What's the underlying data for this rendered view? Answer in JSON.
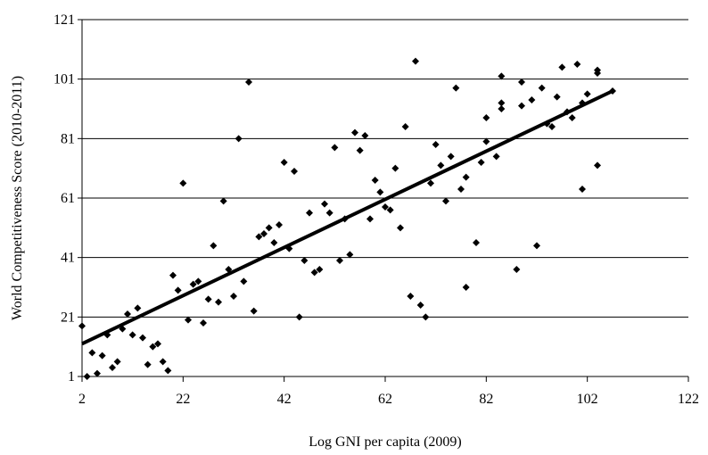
{
  "chart_data": {
    "type": "scatter",
    "xlabel": "Log GNI per capita (2009)",
    "ylabel": "World Competitiveness Score (2010-2011)",
    "xlim": [
      2,
      122
    ],
    "ylim": [
      1,
      121
    ],
    "xticks": [
      2,
      22,
      42,
      62,
      82,
      102,
      122
    ],
    "yticks": [
      1,
      21,
      41,
      61,
      81,
      101,
      121
    ],
    "grid": "horizontal",
    "trendline": {
      "x": [
        2,
        107
      ],
      "y": [
        12,
        97
      ]
    },
    "points": [
      [
        2,
        18
      ],
      [
        3,
        1
      ],
      [
        4,
        9
      ],
      [
        5,
        2
      ],
      [
        6,
        8
      ],
      [
        7,
        15
      ],
      [
        8,
        4
      ],
      [
        9,
        6
      ],
      [
        10,
        17
      ],
      [
        11,
        22
      ],
      [
        12,
        15
      ],
      [
        13,
        24
      ],
      [
        14,
        14
      ],
      [
        15,
        5
      ],
      [
        16,
        11
      ],
      [
        17,
        12
      ],
      [
        18,
        6
      ],
      [
        19,
        3
      ],
      [
        20,
        35
      ],
      [
        21,
        30
      ],
      [
        22,
        66
      ],
      [
        23,
        20
      ],
      [
        24,
        32
      ],
      [
        25,
        33
      ],
      [
        26,
        19
      ],
      [
        27,
        27
      ],
      [
        28,
        45
      ],
      [
        29,
        26
      ],
      [
        30,
        60
      ],
      [
        31,
        37
      ],
      [
        32,
        28
      ],
      [
        33,
        81
      ],
      [
        34,
        33
      ],
      [
        35,
        100
      ],
      [
        36,
        23
      ],
      [
        37,
        48
      ],
      [
        38,
        49
      ],
      [
        39,
        51
      ],
      [
        40,
        46
      ],
      [
        41,
        52
      ],
      [
        42,
        73
      ],
      [
        43,
        44
      ],
      [
        44,
        70
      ],
      [
        45,
        21
      ],
      [
        46,
        40
      ],
      [
        47,
        56
      ],
      [
        48,
        36
      ],
      [
        49,
        37
      ],
      [
        50,
        59
      ],
      [
        51,
        56
      ],
      [
        52,
        78
      ],
      [
        53,
        40
      ],
      [
        54,
        54
      ],
      [
        55,
        42
      ],
      [
        56,
        83
      ],
      [
        57,
        77
      ],
      [
        58,
        82
      ],
      [
        59,
        54
      ],
      [
        60,
        67
      ],
      [
        61,
        63
      ],
      [
        62,
        58
      ],
      [
        63,
        57
      ],
      [
        64,
        71
      ],
      [
        65,
        51
      ],
      [
        66,
        85
      ],
      [
        67,
        28
      ],
      [
        68,
        107
      ],
      [
        69,
        25
      ],
      [
        70,
        21
      ],
      [
        71,
        66
      ],
      [
        72,
        79
      ],
      [
        73,
        72
      ],
      [
        74,
        60
      ],
      [
        75,
        75
      ],
      [
        76,
        98
      ],
      [
        77,
        64
      ],
      [
        78,
        68
      ],
      [
        78,
        31
      ],
      [
        80,
        46
      ],
      [
        81,
        73
      ],
      [
        82,
        88
      ],
      [
        82,
        80
      ],
      [
        84,
        75
      ],
      [
        85,
        91
      ],
      [
        85,
        93
      ],
      [
        85,
        102
      ],
      [
        88,
        37
      ],
      [
        89,
        100
      ],
      [
        89,
        92
      ],
      [
        91,
        94
      ],
      [
        92,
        45
      ],
      [
        93,
        98
      ],
      [
        94,
        86
      ],
      [
        95,
        85
      ],
      [
        96,
        95
      ],
      [
        97,
        105
      ],
      [
        98,
        90
      ],
      [
        99,
        88
      ],
      [
        100,
        106
      ],
      [
        101,
        93
      ],
      [
        102,
        96
      ],
      [
        101,
        64
      ],
      [
        104,
        103
      ],
      [
        104,
        104
      ],
      [
        104,
        72
      ],
      [
        107,
        97
      ]
    ]
  }
}
